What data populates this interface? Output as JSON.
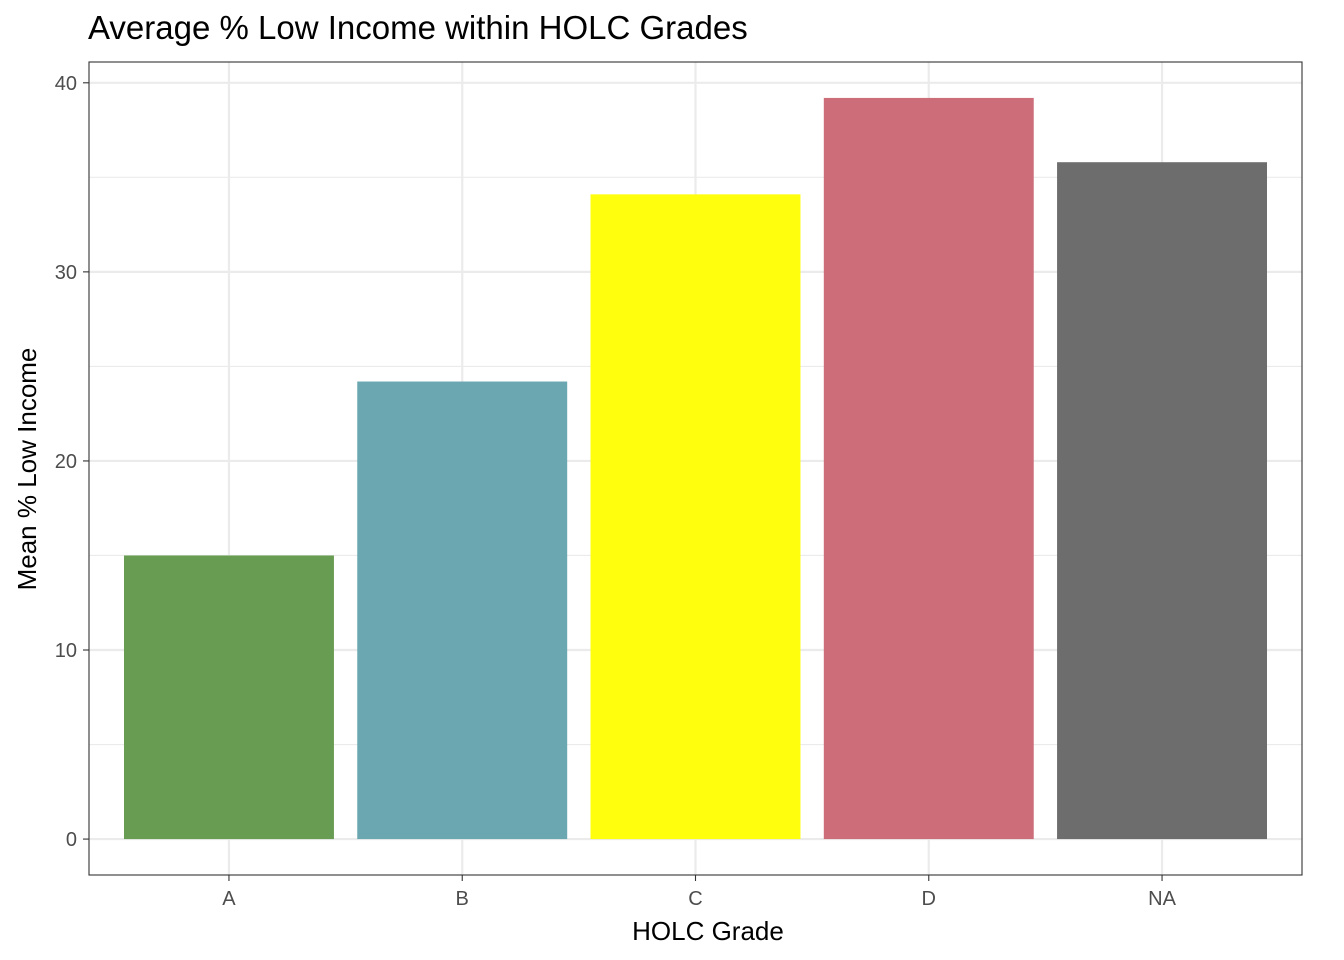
{
  "chart_data": {
    "type": "bar",
    "title": "Average % Low Income within HOLC Grades",
    "xlabel": "HOLC Grade",
    "ylabel": "Mean % Low Income",
    "categories": [
      "A",
      "B",
      "C",
      "D",
      "NA"
    ],
    "values": [
      15.0,
      24.2,
      34.1,
      39.2,
      35.8
    ],
    "colors": [
      "#679C52",
      "#6BA7B0",
      "#FFFF0D",
      "#CD6D79",
      "#6D6D6D"
    ],
    "ylim": [
      -1.9,
      41.1
    ],
    "yticks": [
      0,
      10,
      20,
      30,
      40
    ],
    "ytick_labels": [
      "0",
      "10",
      "20",
      "30",
      "40"
    ],
    "grid": true,
    "grid_color": "#ebebeb",
    "legend": "none"
  }
}
